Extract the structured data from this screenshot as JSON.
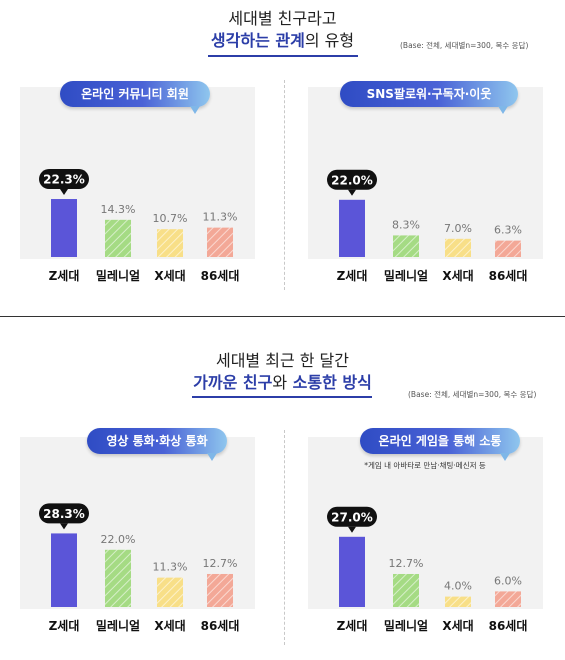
{
  "sections": [
    {
      "title_line1": "세대별 친구라고",
      "title_line2_a": "생각하는 관계",
      "title_line2_b": "의 유형",
      "base": "(Base: 전체, 세대별n=300, 복수 응답)"
    },
    {
      "title_line1": "세대별 최근 한 달간",
      "title_line2_a": "가까운 친구",
      "title_line2_b": "와",
      "title_line2_c": "소통한 방식",
      "base": "(Base: 전체, 세대별n=300, 복수 응답)"
    }
  ],
  "colors": {
    "z": "#5b55d8",
    "millennial": "#a5db84",
    "x": "#f8df88",
    "86": "#f3a897",
    "accent": "#2c3ea8"
  },
  "chart_data": [
    {
      "type": "bar",
      "title": "온라인 커뮤니티 회원",
      "categories": [
        "Z세대",
        "밀레니얼",
        "X세대",
        "86세대"
      ],
      "values": [
        22.3,
        14.3,
        10.7,
        11.3
      ],
      "value_labels": [
        "22.3%",
        "14.3%",
        "10.7%",
        "11.3%"
      ],
      "note": ""
    },
    {
      "type": "bar",
      "title": "SNS팔로워·구독자·이웃",
      "categories": [
        "Z세대",
        "밀레니얼",
        "X세대",
        "86세대"
      ],
      "values": [
        22.0,
        8.3,
        7.0,
        6.3
      ],
      "value_labels": [
        "22.0%",
        "8.3%",
        "7.0%",
        "6.3%"
      ],
      "note": ""
    },
    {
      "type": "bar",
      "title": "영상 통화·화상 통화",
      "categories": [
        "Z세대",
        "밀레니얼",
        "X세대",
        "86세대"
      ],
      "values": [
        28.3,
        22.0,
        11.3,
        12.7
      ],
      "value_labels": [
        "28.3%",
        "22.0%",
        "11.3%",
        "12.7%"
      ],
      "note": ""
    },
    {
      "type": "bar",
      "title": "온라인 게임을 통해 소통",
      "categories": [
        "Z세대",
        "밀레니얼",
        "X세대",
        "86세대"
      ],
      "values": [
        27.0,
        12.7,
        4.0,
        6.0
      ],
      "value_labels": [
        "27.0%",
        "12.7%",
        "4.0%",
        "6.0%"
      ],
      "note": "*게임 내 아바타로 만남·채팅·메신저 등"
    }
  ]
}
